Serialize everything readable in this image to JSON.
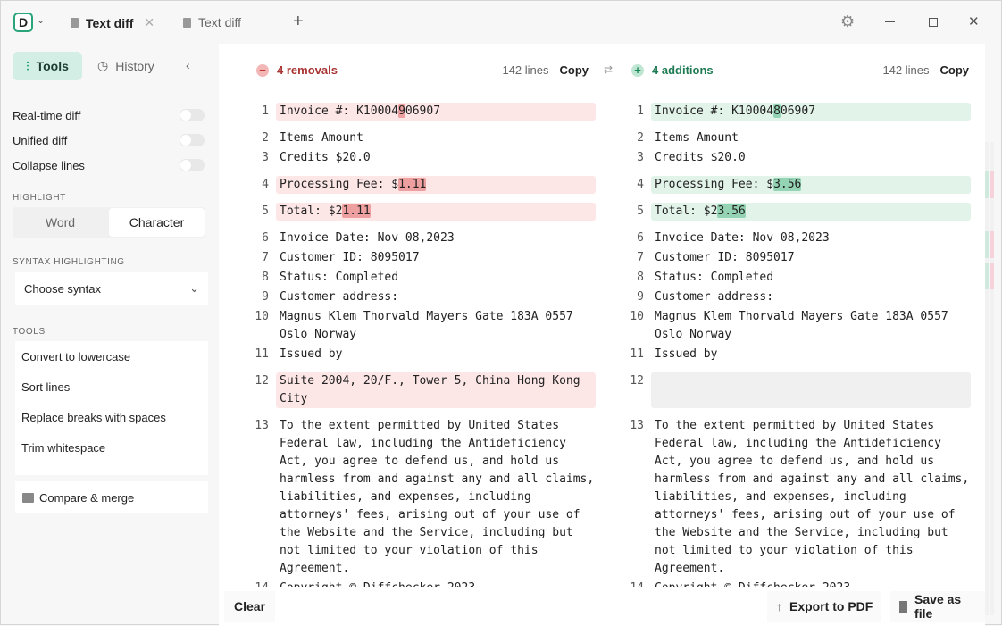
{
  "tabs": [
    {
      "label": "Text diff",
      "active": true
    },
    {
      "label": "Text diff",
      "active": false
    }
  ],
  "logo": "D",
  "sidebar": {
    "tabs": {
      "tools": "Tools",
      "history": "History"
    },
    "toggles": [
      {
        "label": "Real-time diff",
        "on": false
      },
      {
        "label": "Unified diff",
        "on": false
      },
      {
        "label": "Collapse lines",
        "on": false
      }
    ],
    "highlight_title": "HIGHLIGHT",
    "highlight_options": [
      "Word",
      "Character"
    ],
    "highlight_selected": "Character",
    "syntax_title": "SYNTAX HIGHLIGHTING",
    "syntax_value": "Choose syntax",
    "tools_title": "TOOLS",
    "tools": [
      "Convert to lowercase",
      "Sort lines",
      "Replace breaks with spaces",
      "Trim whitespace"
    ],
    "compare": "Compare & merge"
  },
  "left": {
    "summary": "4 removals",
    "lines_count": "142 lines",
    "copy": "Copy",
    "color": "#c0392b",
    "rows": [
      {
        "n": "1",
        "type": "rem",
        "parts": [
          "Invoice #: K10004",
          "9",
          "06907"
        ]
      },
      {
        "n": "2",
        "parts": [
          "Items Amount"
        ]
      },
      {
        "n": "3",
        "parts": [
          "Credits $20.0"
        ]
      },
      {
        "n": "4",
        "type": "rem",
        "parts": [
          "Processing Fee: $",
          "1.11",
          ""
        ]
      },
      {
        "n": "5",
        "type": "rem",
        "parts": [
          "Total: $2",
          "1.11",
          ""
        ]
      },
      {
        "n": "6",
        "parts": [
          "Invoice Date: Nov 08,2023"
        ]
      },
      {
        "n": "7",
        "parts": [
          "Customer ID: 8095017"
        ]
      },
      {
        "n": "8",
        "parts": [
          "Status: Completed"
        ]
      },
      {
        "n": "9",
        "parts": [
          "Customer address:"
        ]
      },
      {
        "n": "10",
        "parts": [
          "Magnus Klem Thorvald Mayers Gate 183A 0557\nOslo Norway"
        ]
      },
      {
        "n": "11",
        "parts": [
          "Issued by"
        ]
      },
      {
        "n": "12",
        "type": "rem",
        "parts": [
          "Suite 2004, 20/F., Tower 5, China Hong Kong\nCity"
        ]
      },
      {
        "n": "13",
        "parts": [
          "To the extent permitted by United States\nFederal law, including the Antideficiency\nAct, you agree to defend us, and hold us\nharmless from and against any and all claims,\nliabilities, and expenses, including\nattorneys' fees, arising out of your use of\nthe Website and the Service, including but\nnot limited to your violation of this\nAgreement."
        ]
      },
      {
        "n": "14",
        "parts": [
          "Copyright © Diffchecker 2023"
        ]
      }
    ]
  },
  "right": {
    "summary": "4 additions",
    "lines_count": "142 lines",
    "copy": "Copy",
    "color": "#1e8a5e",
    "rows": [
      {
        "n": "1",
        "type": "add",
        "parts": [
          "Invoice #: K10004",
          "8",
          "06907"
        ]
      },
      {
        "n": "2",
        "parts": [
          "Items Amount"
        ]
      },
      {
        "n": "3",
        "parts": [
          "Credits $20.0"
        ]
      },
      {
        "n": "4",
        "type": "add",
        "parts": [
          "Processing Fee: $",
          "3.56",
          ""
        ]
      },
      {
        "n": "5",
        "type": "add",
        "parts": [
          "Total: $2",
          "3.56",
          ""
        ]
      },
      {
        "n": "6",
        "parts": [
          "Invoice Date: Nov 08,2023"
        ]
      },
      {
        "n": "7",
        "parts": [
          "Customer ID: 8095017"
        ]
      },
      {
        "n": "8",
        "parts": [
          "Status: Completed"
        ]
      },
      {
        "n": "9",
        "parts": [
          "Customer address:"
        ]
      },
      {
        "n": "10",
        "parts": [
          "Magnus Klem Thorvald Mayers Gate 183A 0557\nOslo Norway"
        ]
      },
      {
        "n": "11",
        "parts": [
          "Issued by"
        ]
      },
      {
        "n": "12",
        "type": "emp",
        "parts": [
          " \n "
        ]
      },
      {
        "n": "13",
        "parts": [
          "To the extent permitted by United States\nFederal law, including the Antideficiency\nAct, you agree to defend us, and hold us\nharmless from and against any and all claims,\nliabilities, and expenses, including\nattorneys' fees, arising out of your use of\nthe Website and the Service, including but\nnot limited to your violation of this\nAgreement."
        ]
      },
      {
        "n": "14",
        "parts": [
          "Copyright © Diffchecker 2023"
        ]
      }
    ]
  },
  "footer": {
    "clear": "Clear",
    "export": "Export to PDF",
    "save": "Save as file"
  }
}
